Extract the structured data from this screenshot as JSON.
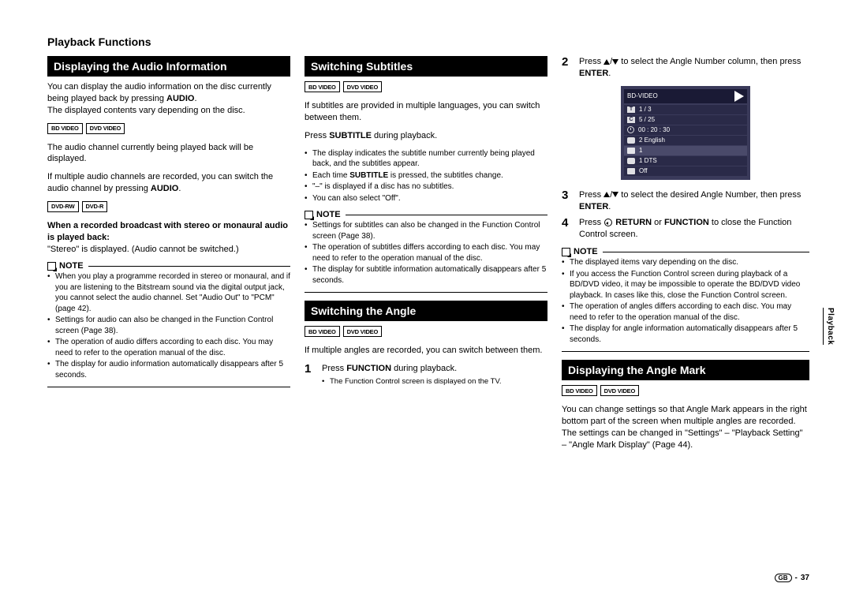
{
  "page_title": "Playback Functions",
  "side_tab": "Playback",
  "page_number": "37",
  "page_region": "GB",
  "note_label": "NOTE",
  "tags": {
    "bd": "BD VIDEO",
    "dvd": "DVD VIDEO",
    "dvdrw": "DVD-RW",
    "dvdr": "DVD-R"
  },
  "col1": {
    "h1": "Displaying the Audio Information",
    "p1a": "You can display the audio information on the disc currently being played back by pressing ",
    "p1b": "AUDIO",
    "p1c": "The displayed contents vary depending on the disc.",
    "p2": "The audio channel currently being played back will be displayed.",
    "p3a": "If multiple audio channels are recorded, you can switch the audio channel by pressing ",
    "p3b": "AUDIO",
    "sub1": "When a recorded broadcast with stereo or monaural audio is played back:",
    "p4": "\"Stereo\" is displayed. (Audio cannot be switched.)",
    "notes": [
      "When you play a programme recorded in stereo or monaural, and if you are listening to the Bitstream sound via the digital output jack, you cannot select the audio channel. Set \"Audio Out\" to \"PCM\" (page 42).",
      "Settings for audio can also be changed in the Function Control screen (Page 38).",
      "The operation of audio differs according to each disc. You may need to refer to the operation manual of the disc.",
      "The display for audio information automatically disappears after 5 seconds."
    ]
  },
  "col2": {
    "h1": "Switching Subtitles",
    "p1": "If subtitles are provided in multiple languages, you can switch between them.",
    "p2a": "Press ",
    "p2b": "SUBTITLE",
    "p2c": " during playback.",
    "sub_bullets": [
      "The display indicates the subtitle number currently being played back, and the subtitles appear.",
      "\"–\" is displayed if a disc has no subtitles.",
      "You can also select \"Off\"."
    ],
    "sub_bullet_special_a": "Each time ",
    "sub_bullet_special_b": "SUBTITLE",
    "sub_bullet_special_c": " is pressed, the subtitles change.",
    "notes1": [
      "Settings for subtitles can also be changed in the Function Control screen (Page 38).",
      "The operation of subtitles differs according to each disc. You may need to refer to the operation manual of the disc.",
      "The display for subtitle information automatically disappears after 5 seconds."
    ],
    "h2": "Switching the Angle",
    "p3": "If multiple angles are recorded, you can switch between them.",
    "step1a": "Press ",
    "step1b": "FUNCTION",
    "step1c": " during playback.",
    "step1_sub": "The Function Control screen is displayed on the TV."
  },
  "col3": {
    "step2a": "Press ",
    "step2b": " to select the Angle Number column, then press ",
    "step2c": "ENTER",
    "osd": {
      "title": "BD-VIDEO",
      "rows": [
        "1 / 3",
        "5 / 25",
        "00 : 20 : 30",
        "2 English",
        "1",
        "1 DTS",
        "Off"
      ]
    },
    "step3a": "Press ",
    "step3b": " to select the desired Angle Number, then press ",
    "step3c": "ENTER",
    "step4a": "Press ",
    "step4b": "RETURN",
    "step4c": " or ",
    "step4d": "FUNCTION",
    "step4e": " to close the Function Control screen.",
    "notes": [
      "The displayed items vary depending on the disc.",
      "If you access the Function Control screen during playback of a BD/DVD video, it may be impossible to operate the BD/DVD video playback. In cases like this, close the Function Control screen.",
      "The operation of angles differs according to each disc. You may need to refer to the operation manual of the disc.",
      "The display for angle information automatically disappears after 5 seconds."
    ],
    "h3": "Displaying the Angle Mark",
    "p_last": "You can change settings so that Angle Mark appears in the right bottom part of the screen when multiple angles are recorded. The settings can be changed in \"Settings\" – \"Playback Setting\" – \"Angle Mark Display\" (Page 44)."
  }
}
